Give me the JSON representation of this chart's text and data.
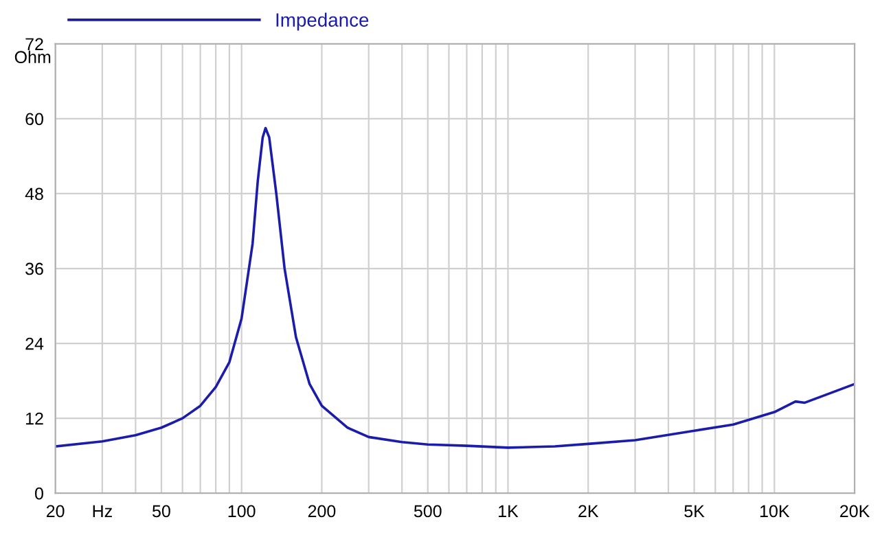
{
  "chart_data": {
    "type": "line",
    "ylabel": "Ohm",
    "log": "x",
    "grid": true,
    "legend": "top left",
    "marker": "none",
    "line_style": "solid",
    "xlim": [
      20,
      20000
    ],
    "ylim": [
      0,
      72
    ],
    "xticks": [
      20,
      {
        "value": 30,
        "label": "Hz"
      },
      {
        "value": 40,
        "label": null
      },
      50,
      {
        "value": 60,
        "label": null
      },
      {
        "value": 70,
        "label": null
      },
      {
        "value": 80,
        "label": null
      },
      {
        "value": 90,
        "label": null
      },
      100,
      200,
      {
        "value": 300,
        "label": null
      },
      {
        "value": 400,
        "label": null
      },
      500,
      {
        "value": 600,
        "label": null
      },
      {
        "value": 700,
        "label": null
      },
      {
        "value": 800,
        "label": null
      },
      {
        "value": 900,
        "label": null
      },
      {
        "value": 1000,
        "label": "1K"
      },
      {
        "value": 2000,
        "label": "2K"
      },
      {
        "value": 3000,
        "label": null
      },
      {
        "value": 4000,
        "label": null
      },
      {
        "value": 5000,
        "label": "5K"
      },
      {
        "value": 6000,
        "label": null
      },
      {
        "value": 7000,
        "label": null
      },
      {
        "value": 8000,
        "label": null
      },
      {
        "value": 9000,
        "label": null
      },
      {
        "value": 10000,
        "label": "10K"
      },
      {
        "value": 20000,
        "label": "20K"
      }
    ],
    "yticks": [
      0,
      12,
      24,
      36,
      48,
      60,
      72
    ],
    "series": [
      {
        "name": "Impedance",
        "color": "#1c1caa",
        "x": [
          20,
          30,
          40,
          50,
          60,
          70,
          80,
          90,
          100,
          110,
          115,
          120,
          123,
          127,
          135,
          145,
          160,
          180,
          200,
          250,
          300,
          400,
          500,
          700,
          1000,
          1500,
          2000,
          3000,
          5000,
          7000,
          10000,
          12000,
          13000,
          15000,
          20000
        ],
        "values": [
          7.5,
          8.3,
          9.3,
          10.5,
          12,
          14,
          17,
          21,
          28,
          40,
          50,
          57,
          58.5,
          57,
          48,
          36,
          25,
          17.5,
          14,
          10.5,
          9,
          8.2,
          7.8,
          7.6,
          7.3,
          7.5,
          7.9,
          8.5,
          10,
          11,
          13,
          14.7,
          14.5,
          15.5,
          17.5
        ]
      }
    ]
  }
}
